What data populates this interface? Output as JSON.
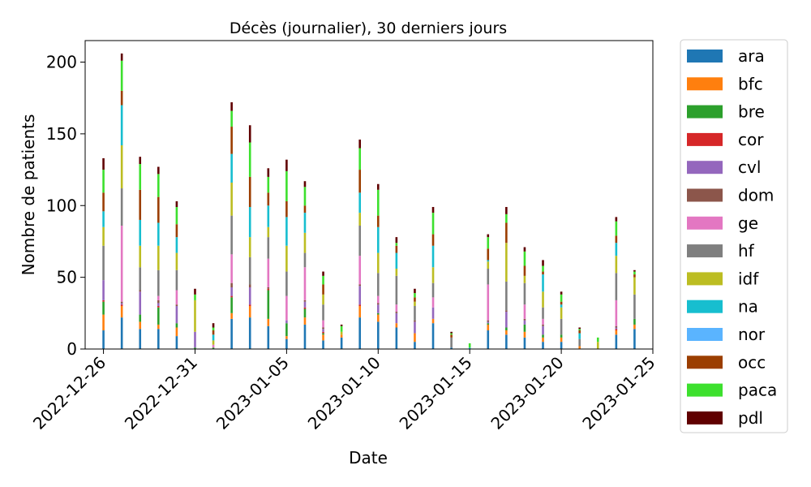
{
  "chart_data": {
    "type": "bar",
    "stacked": true,
    "title": "Décès (journalier), 30 derniers jours",
    "xlabel": "Date",
    "ylabel": "Nombre de patients",
    "ylim": [
      0,
      215
    ],
    "yticks": [
      0,
      50,
      100,
      150,
      200
    ],
    "xlim": [
      "2022-12-25",
      "2023-01-25"
    ],
    "xticks": [
      "2022-12-26",
      "2022-12-31",
      "2023-01-05",
      "2023-01-10",
      "2023-01-15",
      "2023-01-20",
      "2023-01-25"
    ],
    "grid": false,
    "legend_position": "outside-right",
    "categories": [
      "2022-12-26",
      "2022-12-27",
      "2022-12-28",
      "2022-12-29",
      "2022-12-30",
      "2022-12-31",
      "2023-01-01",
      "2023-01-02",
      "2023-01-03",
      "2023-01-04",
      "2023-01-05",
      "2023-01-06",
      "2023-01-07",
      "2023-01-08",
      "2023-01-09",
      "2023-01-10",
      "2023-01-11",
      "2023-01-12",
      "2023-01-13",
      "2023-01-14",
      "2023-01-15",
      "2023-01-16",
      "2023-01-17",
      "2023-01-18",
      "2023-01-19",
      "2023-01-20",
      "2023-01-21",
      "2023-01-22",
      "2023-01-23",
      "2023-01-24"
    ],
    "series": [
      {
        "name": "ara",
        "color": "#1f77b4",
        "values": [
          13,
          22,
          14,
          14,
          9,
          0,
          0,
          21,
          22,
          16,
          7,
          17,
          6,
          8,
          22,
          19,
          15,
          5,
          18,
          1,
          0,
          13,
          10,
          8,
          5,
          5,
          0,
          0,
          10,
          14
        ]
      },
      {
        "name": "bfc",
        "color": "#ff7f0e",
        "values": [
          11,
          8,
          5,
          3,
          6,
          0,
          0,
          4,
          8,
          5,
          2,
          5,
          4,
          2,
          8,
          5,
          3,
          6,
          3,
          0,
          0,
          4,
          3,
          4,
          3,
          3,
          2,
          0,
          3,
          3
        ]
      },
      {
        "name": "bre",
        "color": "#2ca02c",
        "values": [
          9,
          0,
          5,
          12,
          3,
          1,
          1,
          11,
          0,
          20,
          9,
          6,
          1,
          0,
          0,
          1,
          0,
          0,
          0,
          0,
          0,
          1,
          2,
          5,
          2,
          2,
          0,
          0,
          0,
          4
        ]
      },
      {
        "name": "cor",
        "color": "#d62728",
        "values": [
          1,
          1,
          0,
          1,
          0,
          0,
          0,
          1,
          1,
          1,
          0,
          1,
          1,
          0,
          1,
          0,
          0,
          0,
          0,
          0,
          0,
          0,
          0,
          0,
          0,
          0,
          0,
          0,
          1,
          0
        ]
      },
      {
        "name": "cvl",
        "color": "#9467bd",
        "values": [
          14,
          1,
          16,
          2,
          12,
          11,
          0,
          6,
          12,
          0,
          2,
          4,
          2,
          0,
          13,
          6,
          7,
          8,
          8,
          0,
          0,
          1,
          11,
          3,
          6,
          0,
          0,
          0,
          1,
          0
        ]
      },
      {
        "name": "dom",
        "color": "#8c564b",
        "values": [
          0,
          1,
          1,
          2,
          1,
          0,
          0,
          3,
          2,
          1,
          0,
          1,
          1,
          0,
          1,
          1,
          1,
          1,
          0,
          0,
          0,
          1,
          1,
          1,
          1,
          0,
          0,
          0,
          1,
          0
        ]
      },
      {
        "name": "ge",
        "color": "#e377c2",
        "values": [
          0,
          53,
          0,
          3,
          10,
          0,
          2,
          20,
          0,
          20,
          17,
          23,
          5,
          0,
          20,
          5,
          5,
          0,
          7,
          0,
          0,
          25,
          0,
          10,
          4,
          0,
          0,
          0,
          18,
          0
        ]
      },
      {
        "name": "hf",
        "color": "#7f7f7f",
        "values": [
          24,
          26,
          16,
          18,
          14,
          0,
          0,
          27,
          19,
          15,
          17,
          10,
          11,
          0,
          21,
          16,
          20,
          10,
          10,
          7,
          0,
          11,
          20,
          15,
          8,
          11,
          5,
          0,
          19,
          17
        ]
      },
      {
        "name": "idf",
        "color": "#bcbd22",
        "values": [
          13,
          30,
          15,
          17,
          12,
          22,
          3,
          23,
          14,
          7,
          18,
          14,
          7,
          2,
          9,
          14,
          5,
          3,
          11,
          0,
          0,
          5,
          27,
          5,
          11,
          8,
          0,
          5,
          12,
          12
        ]
      },
      {
        "name": "na",
        "color": "#17becf",
        "values": [
          11,
          28,
          18,
          16,
          11,
          0,
          4,
          20,
          21,
          15,
          20,
          14,
          0,
          0,
          14,
          18,
          11,
          0,
          15,
          0,
          1,
          1,
          0,
          0,
          12,
          2,
          4,
          0,
          9,
          0
        ]
      },
      {
        "name": "nor",
        "color": "#5ab4ff",
        "values": [
          0,
          0,
          0,
          0,
          0,
          0,
          0,
          0,
          0,
          0,
          0,
          0,
          0,
          0,
          0,
          0,
          0,
          0,
          0,
          0,
          0,
          0,
          0,
          0,
          0,
          0,
          0,
          0,
          0,
          0
        ]
      },
      {
        "name": "occ",
        "color": "#9b3e00",
        "values": [
          13,
          10,
          21,
          18,
          9,
          0,
          3,
          19,
          21,
          9,
          11,
          5,
          7,
          0,
          16,
          8,
          5,
          3,
          8,
          2,
          0,
          8,
          14,
          7,
          2,
          2,
          2,
          0,
          5,
          2
        ]
      },
      {
        "name": "paca",
        "color": "#3de02e",
        "values": [
          16,
          21,
          18,
          16,
          12,
          4,
          2,
          11,
          24,
          11,
          21,
          13,
          6,
          4,
          15,
          18,
          2,
          3,
          15,
          1,
          3,
          8,
          6,
          10,
          4,
          5,
          1,
          3,
          10,
          2
        ]
      },
      {
        "name": "pdl",
        "color": "#600000",
        "values": [
          8,
          5,
          5,
          5,
          4,
          4,
          3,
          6,
          12,
          6,
          8,
          4,
          3,
          1,
          6,
          4,
          4,
          3,
          4,
          1,
          0,
          2,
          5,
          3,
          4,
          2,
          1,
          0,
          3,
          1
        ]
      }
    ]
  }
}
